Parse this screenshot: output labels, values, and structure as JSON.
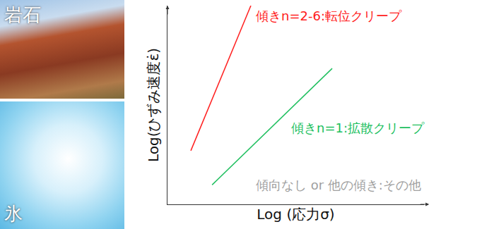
{
  "chart_data": {
    "type": "line",
    "log": true,
    "grid": false,
    "tick_labels": false,
    "xlabel": "Log (応力σ)",
    "ylabel": "Log(ひずみ速度ε̇)",
    "xlim": [
      0,
      10
    ],
    "ylim": [
      0,
      10
    ],
    "series": [
      {
        "name": "傾きn=2-6:転位クリープ",
        "color": "#ff2020",
        "x": [
          0.91,
          3.25
        ],
        "values": [
          2.7,
          10
        ]
      },
      {
        "name": "傾きn=1:拡散クリープ",
        "color": "#20c060",
        "x": [
          1.74,
          6.42
        ],
        "values": [
          0.98,
          6.84
        ]
      }
    ],
    "annotations": [
      {
        "text": "傾向なし or 他の傾き:その他",
        "color": "#a0a0a0"
      }
    ]
  },
  "images": [
    {
      "label": "岩石"
    },
    {
      "label": "氷"
    }
  ]
}
